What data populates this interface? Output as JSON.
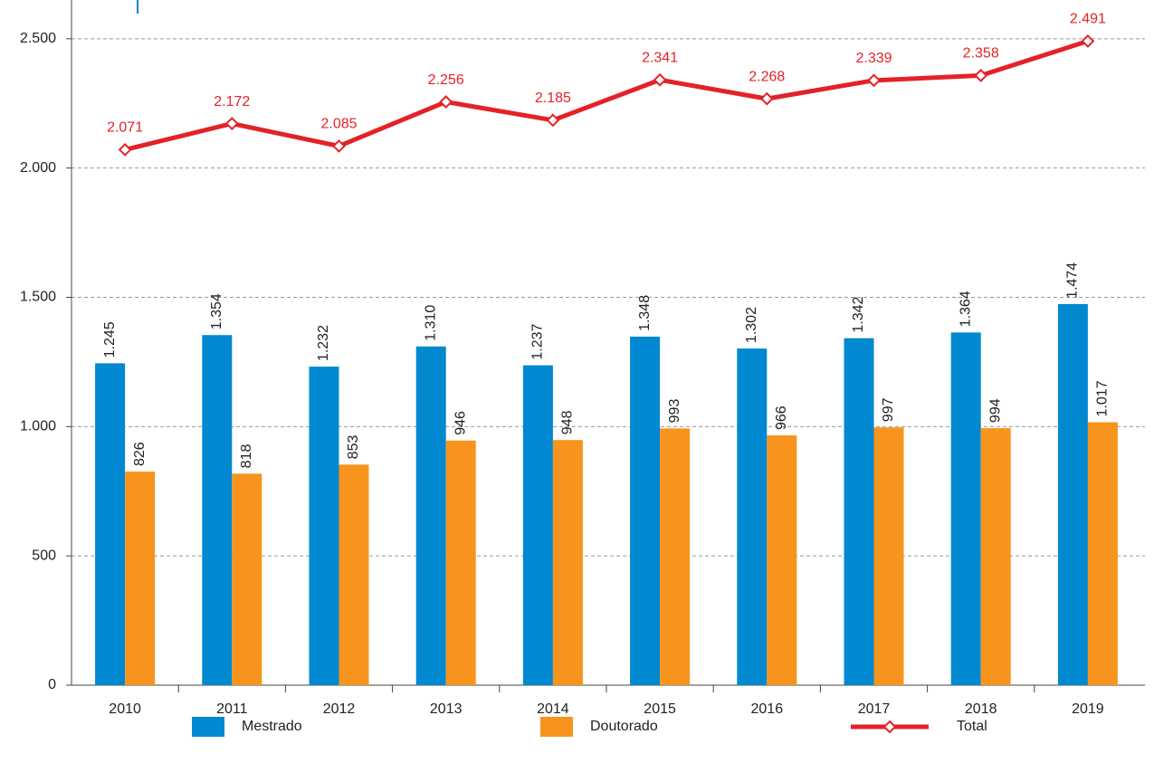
{
  "chart_data": {
    "type": "bar_line",
    "categories": [
      "2010",
      "2011",
      "2012",
      "2013",
      "2014",
      "2015",
      "2016",
      "2017",
      "2018",
      "2019"
    ],
    "series": [
      {
        "name": "Mestrado",
        "type": "bar",
        "color": "#0088d1",
        "values": [
          1245,
          1354,
          1232,
          1310,
          1237,
          1348,
          1302,
          1342,
          1364,
          1474
        ],
        "value_labels": [
          "1.245",
          "1.354",
          "1.232",
          "1.310",
          "1.237",
          "1.348",
          "1.302",
          "1.342",
          "1.364",
          "1.474"
        ]
      },
      {
        "name": "Doutorado",
        "type": "bar",
        "color": "#f7941d",
        "values": [
          826,
          818,
          853,
          946,
          948,
          993,
          966,
          997,
          994,
          1017
        ],
        "value_labels": [
          "826",
          "818",
          "853",
          "946",
          "948",
          "993",
          "966",
          "997",
          "994",
          "1.017"
        ]
      },
      {
        "name": "Total",
        "type": "line",
        "color": "#e32228",
        "values": [
          2071,
          2172,
          2085,
          2256,
          2185,
          2341,
          2268,
          2339,
          2358,
          2491
        ],
        "value_labels": [
          "2.071",
          "2.172",
          "2.085",
          "2.256",
          "2.185",
          "2.341",
          "2.268",
          "2.339",
          "2.358",
          "2.491"
        ]
      }
    ],
    "ylim": [
      0,
      2650
    ],
    "yticks": [
      0,
      500,
      {
        "value": 1000,
        "label": "1.000"
      },
      {
        "value": 1500,
        "label": "1.500"
      },
      {
        "value": 2000,
        "label": "2.000"
      },
      {
        "value": 2500,
        "label": "2.500"
      }
    ],
    "grid": true,
    "legend": "bottom"
  }
}
